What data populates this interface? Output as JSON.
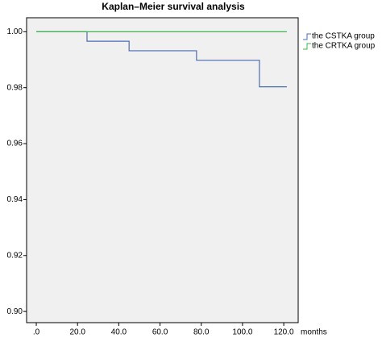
{
  "chart_data": {
    "type": "km-step",
    "title": "Kaplan–Meier survival analysis",
    "xlabel": "months",
    "xlim": [
      -4.7,
      127
    ],
    "ylim": [
      0.896,
      1.005
    ],
    "xticks": [
      {
        "value": 0,
        "label": ".0"
      },
      {
        "value": 20,
        "label": "20.0"
      },
      {
        "value": 40,
        "label": "40.0"
      },
      {
        "value": 60,
        "label": "60.0"
      },
      {
        "value": 80,
        "label": "80.0"
      },
      {
        "value": 100,
        "label": "100.0"
      },
      {
        "value": 120,
        "label": "120.0"
      }
    ],
    "yticks": [
      {
        "value": 0.9,
        "label": "0.90"
      },
      {
        "value": 0.92,
        "label": "0.92"
      },
      {
        "value": 0.94,
        "label": "0.94"
      },
      {
        "value": 0.96,
        "label": "0.96"
      },
      {
        "value": 0.98,
        "label": "0.98"
      },
      {
        "value": 1.0,
        "label": "1.00"
      }
    ],
    "legend": "right",
    "series": [
      {
        "name": "the CSTKA group",
        "color": "#4a6cb3",
        "x": [
          0,
          24.6,
          45,
          77.7,
          108.2,
          121.5
        ],
        "values": [
          1.0,
          0.9966,
          0.9932,
          0.9898,
          0.9803,
          0.9803
        ]
      },
      {
        "name": "the CRTKA group",
        "color": "#3db54a",
        "x": [
          0,
          121.5
        ],
        "values": [
          1.0,
          1.0
        ]
      }
    ]
  }
}
